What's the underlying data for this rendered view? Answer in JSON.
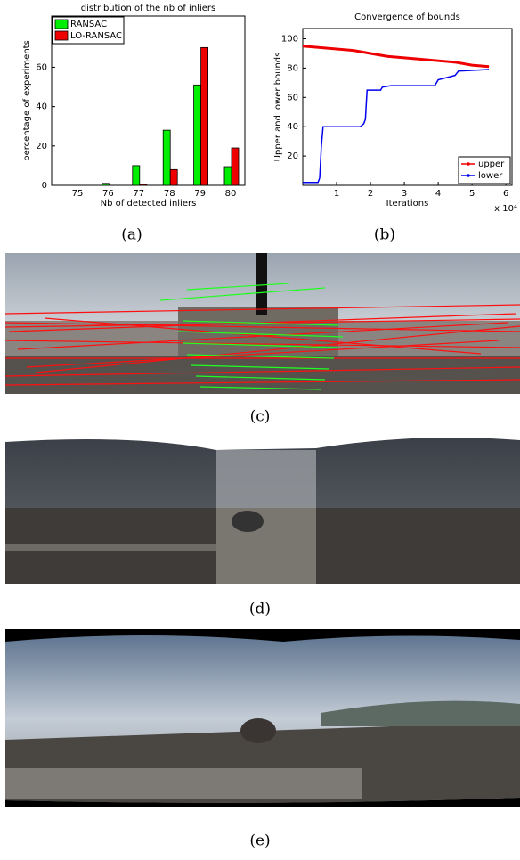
{
  "captions": [
    "(a)",
    "(b)",
    "(c)",
    "(d)",
    "(e)"
  ],
  "chart_data": [
    {
      "type": "bar",
      "title": "distribution of the nb of inliers",
      "x_label": "Nb of detected inliers",
      "y_label": "percentage of experiments",
      "categories": [
        "75",
        "76",
        "77",
        "78",
        "79",
        "80"
      ],
      "series": [
        {
          "name": "RANSAC",
          "color": "#00ee00",
          "values": [
            0,
            1,
            10,
            28,
            51,
            9.5
          ]
        },
        {
          "name": "LO-RANSAC",
          "color": "#ee0000",
          "values": [
            0,
            0,
            0.5,
            8,
            70,
            19
          ]
        }
      ],
      "ylim": [
        0,
        86
      ],
      "yticks": [
        0,
        20,
        40,
        60
      ],
      "legend": "upper-left"
    },
    {
      "type": "line",
      "title": "Convergence of bounds",
      "x_label": "Iterations",
      "y_label": "Upper and lower bounds",
      "x_exponent_label": "x 10⁴",
      "series": [
        {
          "name": "upper",
          "color": "#ee0000",
          "x": [
            0,
            0.5,
            1,
            1.5,
            2,
            2.5,
            3,
            3.5,
            4,
            4.5,
            5,
            5.5
          ],
          "values": [
            95,
            94,
            93,
            92,
            90,
            88,
            87,
            86,
            85,
            84,
            82,
            81
          ]
        },
        {
          "name": "lower",
          "color": "#0000ee",
          "x": [
            0,
            0.45,
            0.5,
            0.55,
            0.6,
            1.7,
            1.8,
            1.85,
            1.9,
            2.3,
            2.35,
            2.6,
            3.9,
            4.0,
            4.5,
            4.6,
            5.5
          ],
          "values": [
            2,
            2,
            5,
            27,
            40,
            40,
            42,
            45,
            65,
            65,
            67,
            68,
            68,
            72,
            75,
            78,
            79
          ]
        }
      ],
      "xlim": [
        0,
        6.18
      ],
      "xticks": [
        1,
        2,
        3,
        4,
        5,
        6
      ],
      "ylim": [
        0,
        107
      ],
      "yticks": [
        20,
        40,
        60,
        80,
        100
      ],
      "legend": "lower-right"
    }
  ]
}
